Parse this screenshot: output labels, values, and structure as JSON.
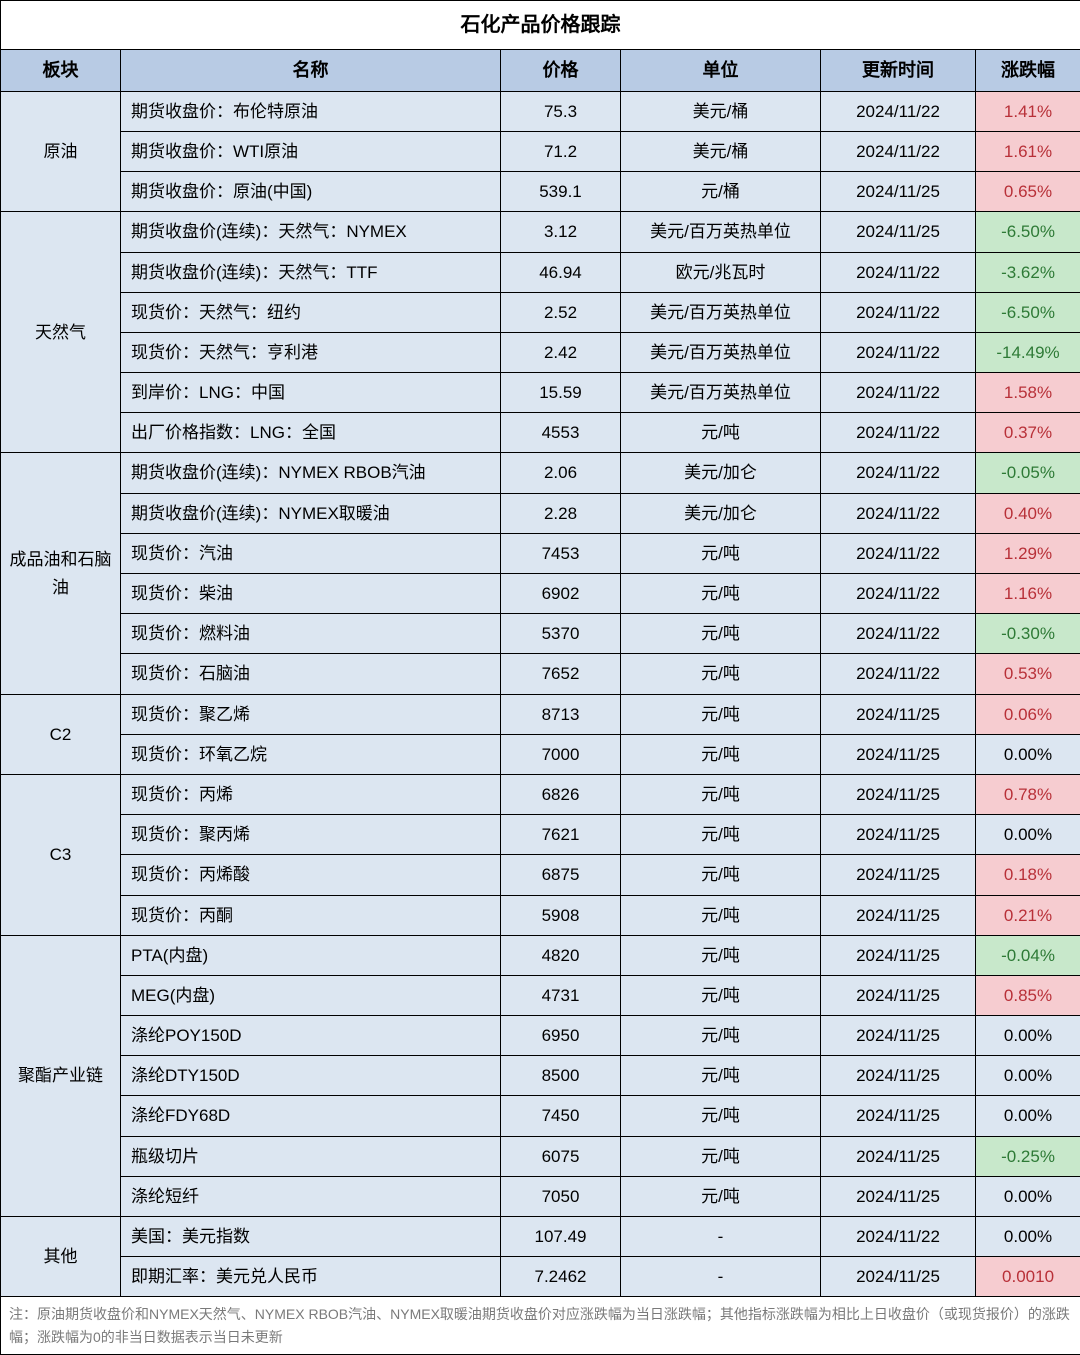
{
  "title": "石化产品价格跟踪",
  "headers": {
    "sector": "板块",
    "name": "名称",
    "price": "价格",
    "unit": "单位",
    "date": "更新时间",
    "change": "涨跌幅"
  },
  "sections": [
    {
      "sector": "原油",
      "rows": [
        {
          "name": "期货收盘价：布伦特原油",
          "price": "75.3",
          "unit": "美元/桶",
          "date": "2024/11/22",
          "change": "1.41%",
          "dir": "pos"
        },
        {
          "name": "期货收盘价：WTI原油",
          "price": "71.2",
          "unit": "美元/桶",
          "date": "2024/11/22",
          "change": "1.61%",
          "dir": "pos"
        },
        {
          "name": "期货收盘价：原油(中国)",
          "price": "539.1",
          "unit": "元/桶",
          "date": "2024/11/25",
          "change": "0.65%",
          "dir": "pos"
        }
      ]
    },
    {
      "sector": "天然气",
      "rows": [
        {
          "name": "期货收盘价(连续)：天然气：NYMEX",
          "price": "3.12",
          "unit": "美元/百万英热单位",
          "date": "2024/11/25",
          "change": "-6.50%",
          "dir": "neg"
        },
        {
          "name": "期货收盘价(连续)：天然气：TTF",
          "price": "46.94",
          "unit": "欧元/兆瓦时",
          "date": "2024/11/22",
          "change": "-3.62%",
          "dir": "neg"
        },
        {
          "name": "现货价：天然气：纽约",
          "price": "2.52",
          "unit": "美元/百万英热单位",
          "date": "2024/11/22",
          "change": "-6.50%",
          "dir": "neg"
        },
        {
          "name": "现货价：天然气：亨利港",
          "price": "2.42",
          "unit": "美元/百万英热单位",
          "date": "2024/11/22",
          "change": "-14.49%",
          "dir": "neg"
        },
        {
          "name": "到岸价：LNG：中国",
          "price": "15.59",
          "unit": "美元/百万英热单位",
          "date": "2024/11/22",
          "change": "1.58%",
          "dir": "pos"
        },
        {
          "name": "出厂价格指数：LNG：全国",
          "price": "4553",
          "unit": "元/吨",
          "date": "2024/11/22",
          "change": "0.37%",
          "dir": "pos"
        }
      ]
    },
    {
      "sector": "成品油和石脑油",
      "rows": [
        {
          "name": "期货收盘价(连续)：NYMEX RBOB汽油",
          "price": "2.06",
          "unit": "美元/加仑",
          "date": "2024/11/22",
          "change": "-0.05%",
          "dir": "neg"
        },
        {
          "name": "期货收盘价(连续)：NYMEX取暖油",
          "price": "2.28",
          "unit": "美元/加仑",
          "date": "2024/11/22",
          "change": "0.40%",
          "dir": "pos"
        },
        {
          "name": "现货价：汽油",
          "price": "7453",
          "unit": "元/吨",
          "date": "2024/11/22",
          "change": "1.29%",
          "dir": "pos"
        },
        {
          "name": "现货价：柴油",
          "price": "6902",
          "unit": "元/吨",
          "date": "2024/11/22",
          "change": "1.16%",
          "dir": "pos"
        },
        {
          "name": "现货价：燃料油",
          "price": "5370",
          "unit": "元/吨",
          "date": "2024/11/22",
          "change": "-0.30%",
          "dir": "neg"
        },
        {
          "name": "现货价：石脑油",
          "price": "7652",
          "unit": "元/吨",
          "date": "2024/11/22",
          "change": "0.53%",
          "dir": "pos"
        }
      ]
    },
    {
      "sector": "C2",
      "rows": [
        {
          "name": "现货价：聚乙烯",
          "price": "8713",
          "unit": "元/吨",
          "date": "2024/11/25",
          "change": "0.06%",
          "dir": "pos"
        },
        {
          "name": "现货价：环氧乙烷",
          "price": "7000",
          "unit": "元/吨",
          "date": "2024/11/25",
          "change": "0.00%",
          "dir": "zero"
        }
      ]
    },
    {
      "sector": "C3",
      "rows": [
        {
          "name": "现货价：丙烯",
          "price": "6826",
          "unit": "元/吨",
          "date": "2024/11/25",
          "change": "0.78%",
          "dir": "pos"
        },
        {
          "name": "现货价：聚丙烯",
          "price": "7621",
          "unit": "元/吨",
          "date": "2024/11/25",
          "change": "0.00%",
          "dir": "zero"
        },
        {
          "name": "现货价：丙烯酸",
          "price": "6875",
          "unit": "元/吨",
          "date": "2024/11/25",
          "change": "0.18%",
          "dir": "pos"
        },
        {
          "name": "现货价：丙酮",
          "price": "5908",
          "unit": "元/吨",
          "date": "2024/11/25",
          "change": "0.21%",
          "dir": "pos"
        }
      ]
    },
    {
      "sector": "聚酯产业链",
      "rows": [
        {
          "name": "PTA(内盘)",
          "price": "4820",
          "unit": "元/吨",
          "date": "2024/11/25",
          "change": "-0.04%",
          "dir": "neg"
        },
        {
          "name": "MEG(内盘)",
          "price": "4731",
          "unit": "元/吨",
          "date": "2024/11/25",
          "change": "0.85%",
          "dir": "pos"
        },
        {
          "name": "涤纶POY150D",
          "price": "6950",
          "unit": "元/吨",
          "date": "2024/11/25",
          "change": "0.00%",
          "dir": "zero"
        },
        {
          "name": "涤纶DTY150D",
          "price": "8500",
          "unit": "元/吨",
          "date": "2024/11/25",
          "change": "0.00%",
          "dir": "zero"
        },
        {
          "name": "涤纶FDY68D",
          "price": "7450",
          "unit": "元/吨",
          "date": "2024/11/25",
          "change": "0.00%",
          "dir": "zero"
        },
        {
          "name": "瓶级切片",
          "price": "6075",
          "unit": "元/吨",
          "date": "2024/11/25",
          "change": "-0.25%",
          "dir": "neg"
        },
        {
          "name": "涤纶短纤",
          "price": "7050",
          "unit": "元/吨",
          "date": "2024/11/25",
          "change": "0.00%",
          "dir": "zero"
        }
      ]
    },
    {
      "sector": "其他",
      "rows": [
        {
          "name": "美国：美元指数",
          "price": "107.49",
          "unit": "-",
          "date": "2024/11/22",
          "change": "0.00%",
          "dir": "zero"
        },
        {
          "name": "即期汇率：美元兑人民币",
          "price": "7.2462",
          "unit": "-",
          "date": "2024/11/25",
          "change": "0.0010",
          "dir": "pos"
        }
      ]
    }
  ],
  "footnote": "注：原油期货收盘价和NYMEX天然气、NYMEX RBOB汽油、NYMEX取暖油期货收盘价对应涨跌幅为当日涨跌幅；其他指标涨跌幅为相比上日收盘价（或现货报价）的涨跌幅；涨跌幅为0的非当日数据表示当日未更新",
  "colors": {
    "header_bg": "#b8cbe4",
    "body_bg": "#dce6f1",
    "pos_bg": "#f6ccd0",
    "pos_fg": "#b83038",
    "neg_bg": "#c8e8cb",
    "neg_fg": "#2e7a36",
    "border": "#000000",
    "footnote_fg": "#7a7a7a"
  }
}
